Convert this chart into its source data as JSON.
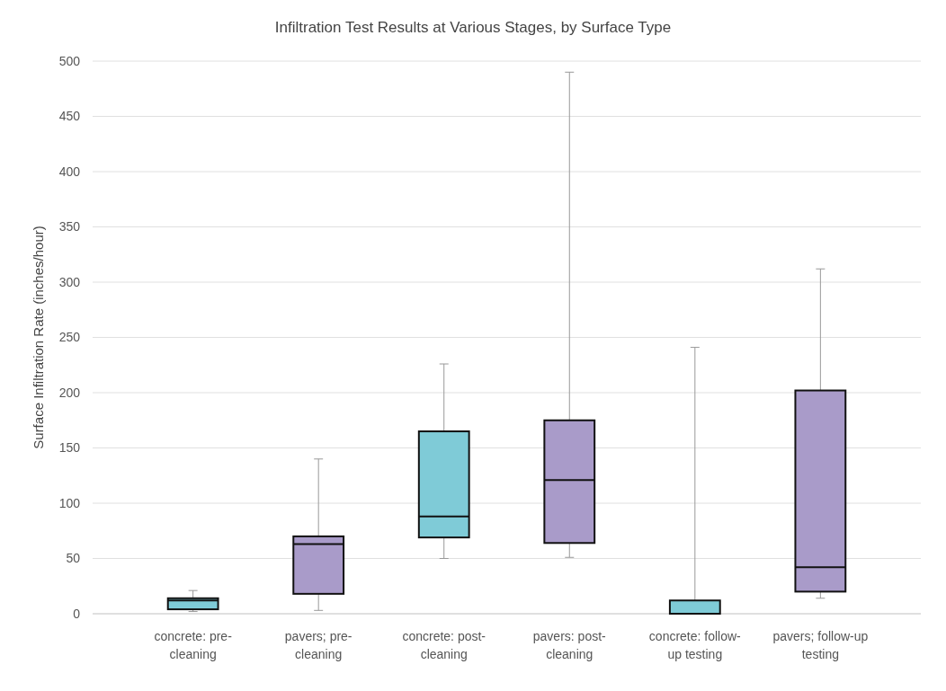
{
  "chart_data": {
    "type": "box",
    "title": "Infiltration Test Results at Various Stages, by Surface Type",
    "ylabel": "Surface Infiltration Rate (inches/hour)",
    "categories": [
      "concrete: pre-cleaning",
      "pavers; pre-cleaning",
      "concrete: post-cleaning",
      "pavers: post-cleaning",
      "concrete: follow-up testing",
      "pavers; follow-up testing"
    ],
    "boxes": [
      {
        "low": 2,
        "q1": 4,
        "median": 12,
        "q3": 14,
        "high": 21
      },
      {
        "low": 3,
        "q1": 18,
        "median": 63,
        "q3": 70,
        "high": 140
      },
      {
        "low": 50,
        "q1": 69,
        "median": 88,
        "q3": 165,
        "high": 226
      },
      {
        "low": 51,
        "q1": 64,
        "median": 121,
        "q3": 175,
        "high": 490
      },
      {
        "low": 0,
        "q1": 0,
        "median": 0,
        "q3": 12,
        "high": 241
      },
      {
        "low": 14,
        "q1": 20,
        "median": 42,
        "q3": 202,
        "high": 312
      }
    ],
    "colors": [
      "#7fcbd7",
      "#a99bc9",
      "#7fcbd7",
      "#a99bc9",
      "#7fcbd7",
      "#a99bc9"
    ],
    "ylim": [
      0,
      500
    ],
    "yticks": [
      0,
      50,
      100,
      150,
      200,
      250,
      300,
      350,
      400,
      450,
      500
    ],
    "grid": "y"
  }
}
